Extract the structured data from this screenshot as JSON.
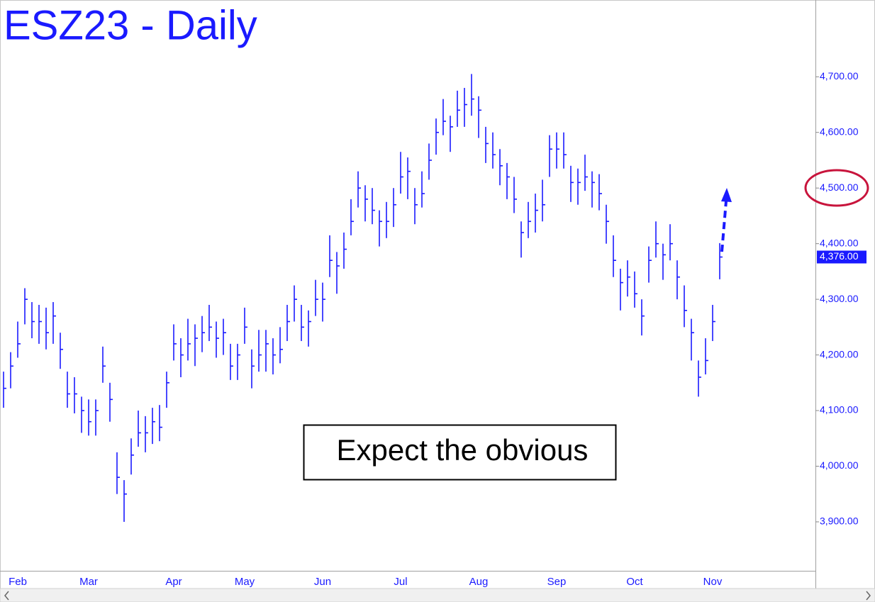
{
  "chart_data": {
    "type": "hlc",
    "title": "ESZ23 - Daily",
    "annotation": "Expect the obvious",
    "color": "#1a1aff",
    "categories": [
      null,
      null,
      "Feb",
      null,
      null,
      null,
      null,
      null,
      null,
      null,
      null,
      null,
      "Mar",
      null,
      null,
      null,
      null,
      null,
      null,
      null,
      null,
      null,
      null,
      null,
      "Apr",
      null,
      null,
      null,
      null,
      null,
      null,
      null,
      null,
      null,
      "May",
      null,
      null,
      null,
      null,
      null,
      null,
      null,
      null,
      null,
      null,
      "Jun",
      null,
      null,
      null,
      null,
      null,
      null,
      null,
      null,
      null,
      null,
      "Jul",
      null,
      null,
      null,
      null,
      null,
      null,
      null,
      null,
      null,
      null,
      "Aug",
      null,
      null,
      null,
      null,
      null,
      null,
      null,
      null,
      null,
      null,
      "Sep",
      null,
      null,
      null,
      null,
      null,
      null,
      null,
      null,
      null,
      null,
      "Oct",
      null,
      null,
      null,
      null,
      null,
      null,
      null,
      null,
      null,
      null,
      "Nov",
      null
    ],
    "high": [
      4170,
      4205,
      4260,
      4320,
      4295,
      4290,
      4285,
      4295,
      4240,
      4170,
      4160,
      4125,
      4120,
      4120,
      4215,
      4150,
      4025,
      3975,
      4050,
      4100,
      4090,
      4105,
      4110,
      4170,
      4255,
      4230,
      4265,
      4255,
      4270,
      4290,
      4260,
      4265,
      4220,
      4220,
      4285,
      4210,
      4245,
      4245,
      4230,
      4250,
      4290,
      4325,
      4290,
      4280,
      4335,
      4330,
      4415,
      4385,
      4420,
      4480,
      4530,
      4505,
      4500,
      4460,
      4475,
      4500,
      4565,
      4555,
      4500,
      4530,
      4580,
      4625,
      4660,
      4630,
      4675,
      4680,
      4705,
      4665,
      4610,
      4600,
      4570,
      4545,
      4520,
      4440,
      4475,
      4490,
      4515,
      4595,
      4600,
      4600,
      4540,
      4535,
      4560,
      4530,
      4525,
      4470,
      4415,
      4355,
      4370,
      4350,
      4300,
      4395,
      4440,
      4400,
      4435,
      4370,
      4325,
      4265,
      4190,
      4230,
      4290,
      4401
    ],
    "low": [
      4105,
      4140,
      4195,
      4255,
      4230,
      4220,
      4210,
      4220,
      4175,
      4105,
      4095,
      4060,
      4055,
      4055,
      4150,
      4080,
      3950,
      3900,
      3985,
      4035,
      4025,
      4040,
      4045,
      4105,
      4190,
      4160,
      4190,
      4180,
      4205,
      4225,
      4195,
      4200,
      4155,
      4155,
      4220,
      4140,
      4170,
      4170,
      4165,
      4185,
      4225,
      4260,
      4225,
      4215,
      4270,
      4260,
      4340,
      4310,
      4355,
      4415,
      4465,
      4440,
      4435,
      4395,
      4410,
      4430,
      4490,
      4480,
      4435,
      4465,
      4515,
      4560,
      4595,
      4565,
      4610,
      4610,
      4630,
      4590,
      4545,
      4535,
      4505,
      4480,
      4455,
      4375,
      4410,
      4420,
      4440,
      4520,
      4535,
      4535,
      4475,
      4470,
      4495,
      4465,
      4460,
      4400,
      4340,
      4280,
      4305,
      4285,
      4235,
      4330,
      4375,
      4335,
      4370,
      4300,
      4250,
      4190,
      4125,
      4165,
      4225,
      4336
    ],
    "close": [
      4140,
      4180,
      4220,
      4300,
      4260,
      4260,
      4240,
      4270,
      4210,
      4130,
      4130,
      4100,
      4080,
      4100,
      4180,
      4120,
      3980,
      3950,
      4020,
      4060,
      4060,
      4080,
      4070,
      4150,
      4220,
      4200,
      4220,
      4230,
      4240,
      4250,
      4230,
      4240,
      4180,
      4200,
      4250,
      4180,
      4200,
      4220,
      4200,
      4210,
      4260,
      4300,
      4250,
      4260,
      4300,
      4300,
      4370,
      4360,
      4390,
      4440,
      4500,
      4480,
      4460,
      4440,
      4440,
      4470,
      4520,
      4530,
      4470,
      4490,
      4550,
      4600,
      4620,
      4610,
      4640,
      4650,
      4660,
      4640,
      4580,
      4560,
      4540,
      4520,
      4480,
      4420,
      4440,
      4460,
      4470,
      4570,
      4570,
      4560,
      4510,
      4510,
      4520,
      4510,
      4490,
      4440,
      4370,
      4330,
      4340,
      4310,
      4270,
      4370,
      4400,
      4380,
      4400,
      4340,
      4280,
      4240,
      4160,
      4190,
      4260,
      4376
    ],
    "last_price_label": "4,376.00",
    "ylim": [
      3812,
      4838
    ],
    "yticks": [
      {
        "value": 3900,
        "label": "3,900.00"
      },
      {
        "value": 4000,
        "label": "4,000.00"
      },
      {
        "value": 4100,
        "label": "4,100.00"
      },
      {
        "value": 4200,
        "label": "4,200.00"
      },
      {
        "value": 4300,
        "label": "4,300.00"
      },
      {
        "value": 4400,
        "label": "4,400.00"
      },
      {
        "value": 4500,
        "label": "4,500.00"
      },
      {
        "value": 4600,
        "label": "4,600.00"
      },
      {
        "value": 4700,
        "label": "4,700.00"
      }
    ]
  }
}
